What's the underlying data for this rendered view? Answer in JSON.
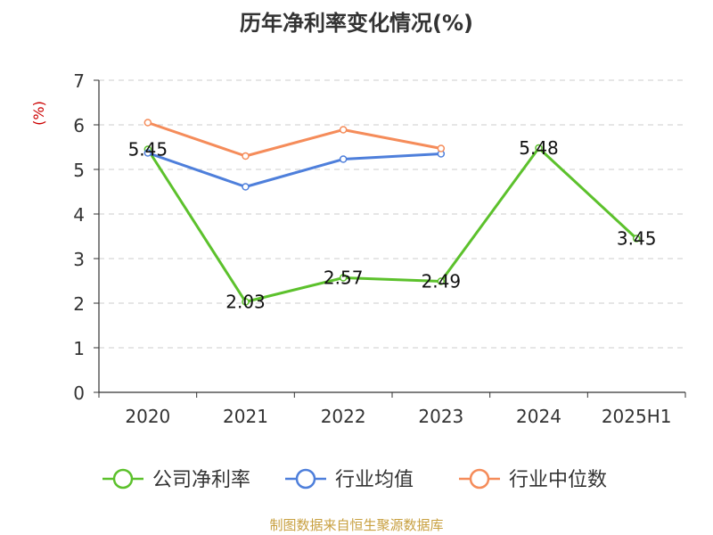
{
  "chart_data": {
    "type": "line",
    "title": "历年净利率变化情况(%)",
    "ylabel": "(%)",
    "xlabel": "",
    "categories": [
      "2020",
      "2021",
      "2022",
      "2023",
      "2024",
      "2025H1"
    ],
    "ylim": [
      0,
      7
    ],
    "yticks": [
      0,
      1,
      2,
      3,
      4,
      5,
      6,
      7
    ],
    "grid": true,
    "legend_position": "bottom",
    "series": [
      {
        "name": "公司净利率",
        "color": "#5cc12c",
        "values": [
          5.45,
          2.03,
          2.57,
          2.49,
          5.48,
          3.45
        ],
        "labels": [
          "5.45",
          "2.03",
          "2.57",
          "2.49",
          "5.48",
          "3.45"
        ]
      },
      {
        "name": "行业均值",
        "color": "#4e7fdb",
        "values": [
          5.37,
          4.61,
          5.23,
          5.35,
          null,
          null
        ]
      },
      {
        "name": "行业中位数",
        "color": "#f58c5a",
        "values": [
          6.05,
          5.3,
          5.89,
          5.47,
          null,
          null
        ]
      }
    ]
  },
  "footer": {
    "source": "制图数据来自恒生聚源数据库"
  },
  "colors": {
    "title": "#333333",
    "axis": "#333333",
    "grid": "#cccccc",
    "ylabel": "#cc0000",
    "source": "#c8a040"
  }
}
